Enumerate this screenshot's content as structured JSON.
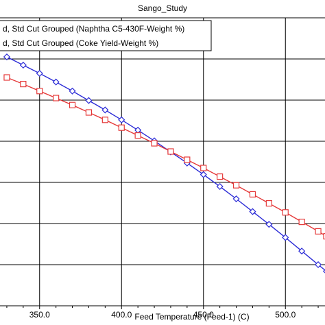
{
  "chart_data": {
    "type": "line",
    "title": "Sango_Study",
    "xlabel": "Feed Temperature (Feed-1) (C)",
    "ylabel": "",
    "xlim": [
      325,
      525
    ],
    "ylim": [
      0,
      7
    ],
    "x_ticks": [
      350,
      400,
      450,
      500
    ],
    "x_tick_labels": [
      "350.0",
      "400.0",
      "450.0",
      "500.0"
    ],
    "grid": true,
    "legend": {
      "placement": "top-left",
      "framed": true
    },
    "series": [
      {
        "name": "d, Std Cut Grouped (Naphtha C5-430F-Weight %)",
        "color": "#2b2bd6",
        "marker": "diamond",
        "x": [
          330,
          340,
          350,
          360,
          370,
          380,
          390,
          400,
          410,
          420,
          430,
          440,
          450,
          460,
          470,
          480,
          490,
          500,
          510,
          520,
          525
        ],
        "y": [
          6.05,
          5.85,
          5.65,
          5.44,
          5.22,
          4.99,
          4.76,
          4.52,
          4.27,
          4.01,
          3.74,
          3.47,
          3.19,
          2.9,
          2.6,
          2.29,
          1.98,
          1.66,
          1.33,
          1.0,
          0.84
        ]
      },
      {
        "name": "d, Std Cut Grouped (Coke Yield-Weight %)",
        "color": "#e53a3a",
        "marker": "square",
        "x": [
          330,
          340,
          350,
          360,
          370,
          380,
          390,
          400,
          410,
          420,
          430,
          440,
          450,
          460,
          470,
          480,
          490,
          500,
          510,
          520,
          525
        ],
        "y": [
          5.55,
          5.39,
          5.22,
          5.05,
          4.88,
          4.7,
          4.52,
          4.33,
          4.14,
          3.95,
          3.75,
          3.55,
          3.35,
          3.14,
          2.93,
          2.71,
          2.49,
          2.27,
          2.04,
          1.81,
          1.69
        ]
      }
    ]
  }
}
